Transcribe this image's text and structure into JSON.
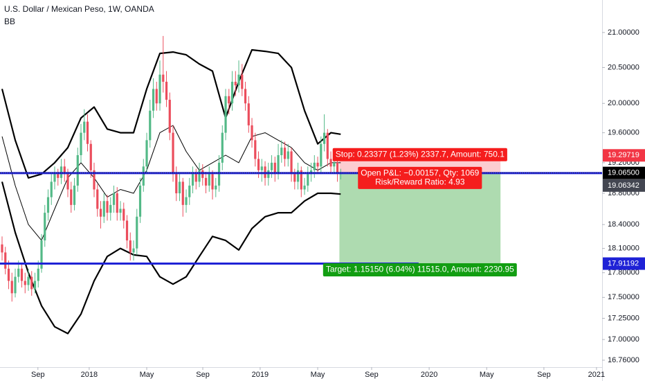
{
  "chart_data": {
    "type": "candlestick",
    "title": "U.S. Dollar / Mexican Peso, 1W, OANDA",
    "log_scale": true,
    "up_color": "#53b987",
    "down_color": "#eb4d5c",
    "x": [
      0,
      1,
      2,
      3,
      4,
      5,
      6,
      7,
      8,
      9,
      10,
      11,
      12,
      13,
      14,
      15,
      16,
      17,
      18,
      19,
      20,
      21,
      22,
      23,
      24,
      25,
      26,
      27,
      28,
      29,
      30,
      31,
      32,
      33,
      34,
      35,
      36,
      37,
      38,
      39,
      40,
      41,
      42,
      43,
      44,
      45,
      46,
      47,
      48,
      49,
      50,
      51,
      52,
      53,
      54,
      55,
      56,
      57,
      58,
      59,
      60,
      61,
      62,
      63,
      64,
      65,
      66,
      67,
      68,
      69,
      70,
      71,
      72,
      73,
      74,
      75,
      76,
      77,
      78,
      79,
      80,
      81,
      82,
      83,
      84,
      85,
      86,
      87,
      88,
      89,
      90,
      91,
      92,
      93,
      94,
      95,
      96,
      97,
      98,
      99,
      100,
      101,
      102,
      103
    ],
    "open": [
      18.15,
      18.05,
      17.85,
      17.7,
      17.55,
      17.75,
      17.85,
      17.7,
      17.65,
      17.75,
      17.6,
      17.7,
      17.85,
      18.2,
      18.55,
      18.75,
      18.95,
      19.05,
      19.0,
      19.15,
      19.05,
      18.85,
      18.65,
      18.9,
      19.3,
      19.6,
      19.75,
      19.45,
      19.1,
      18.85,
      18.6,
      18.5,
      18.7,
      18.55,
      18.65,
      18.8,
      18.55,
      18.6,
      18.45,
      18.2,
      18.05,
      18.1,
      18.5,
      18.9,
      19.15,
      19.5,
      19.9,
      20.2,
      20.0,
      20.4,
      20.3,
      20.05,
      19.6,
      19.05,
      18.8,
      18.95,
      18.65,
      18.75,
      18.9,
      19.05,
      18.95,
      19.1,
      19.0,
      18.9,
      19.05,
      18.85,
      18.9,
      19.2,
      19.6,
      20.1,
      20.0,
      20.3,
      20.25,
      20.4,
      20.2,
      20.0,
      19.7,
      19.5,
      19.25,
      19.1,
      19.15,
      19.0,
      19.1,
      19.2,
      19.05,
      19.3,
      19.4,
      19.25,
      19.35,
      19.05,
      18.95,
      19.1,
      18.85,
      18.9,
      19.05,
      19.1,
      19.2,
      19.15,
      19.45,
      19.6,
      19.25,
      19.15,
      19.2,
      19.05
    ],
    "high": [
      18.25,
      18.12,
      17.95,
      17.8,
      17.85,
      17.95,
      17.92,
      17.8,
      17.85,
      17.82,
      17.8,
      17.95,
      18.28,
      18.65,
      18.85,
      19.05,
      19.15,
      19.12,
      19.25,
      19.25,
      19.12,
      18.95,
      19.0,
      19.4,
      19.72,
      19.92,
      19.85,
      19.5,
      19.2,
      18.92,
      18.7,
      18.8,
      18.78,
      18.75,
      18.9,
      18.88,
      18.7,
      18.68,
      18.52,
      18.3,
      18.2,
      18.6,
      19.0,
      19.25,
      19.6,
      20.05,
      20.35,
      20.3,
      20.6,
      20.95,
      20.45,
      20.15,
      19.7,
      19.15,
      19.05,
      19.0,
      18.85,
      19.0,
      19.15,
      19.12,
      19.2,
      19.18,
      19.08,
      19.15,
      19.1,
      19.0,
      19.3,
      19.7,
      20.2,
      20.2,
      20.45,
      20.45,
      20.6,
      20.55,
      20.3,
      20.1,
      19.8,
      19.6,
      19.35,
      19.25,
      19.22,
      19.2,
      19.3,
      19.28,
      19.45,
      19.5,
      19.48,
      19.45,
      19.4,
      19.12,
      19.2,
      19.15,
      19.0,
      19.15,
      19.2,
      19.3,
      19.28,
      19.55,
      19.85,
      19.65,
      19.35,
      19.3,
      19.25,
      19.12
    ],
    "low": [
      17.95,
      17.78,
      17.6,
      17.45,
      17.5,
      17.68,
      17.62,
      17.55,
      17.58,
      17.52,
      17.55,
      17.62,
      17.8,
      18.12,
      18.45,
      18.65,
      18.85,
      18.9,
      18.92,
      18.95,
      18.75,
      18.55,
      18.58,
      18.82,
      19.2,
      19.5,
      19.35,
      19.0,
      18.75,
      18.5,
      18.35,
      18.42,
      18.45,
      18.45,
      18.55,
      18.45,
      18.45,
      18.35,
      18.1,
      17.95,
      17.95,
      18.02,
      18.42,
      18.82,
      19.05,
      19.4,
      19.8,
      19.9,
      19.9,
      20.15,
      19.95,
      19.5,
      18.95,
      18.7,
      18.7,
      18.5,
      18.55,
      18.65,
      18.8,
      18.85,
      18.88,
      18.9,
      18.8,
      18.82,
      18.72,
      18.75,
      18.82,
      19.1,
      19.5,
      19.85,
      19.9,
      20.1,
      20.15,
      20.1,
      19.9,
      19.6,
      19.4,
      19.15,
      19.0,
      18.95,
      18.9,
      18.9,
      19.0,
      18.95,
      18.98,
      19.2,
      19.15,
      19.15,
      18.95,
      18.85,
      18.85,
      18.75,
      18.78,
      18.82,
      18.95,
      19.0,
      19.05,
      19.05,
      19.35,
      19.15,
      19.05,
      19.05,
      18.95,
      18.98
    ],
    "close": [
      18.05,
      17.85,
      17.7,
      17.55,
      17.75,
      17.85,
      17.7,
      17.65,
      17.75,
      17.6,
      17.7,
      17.85,
      18.2,
      18.55,
      18.75,
      18.95,
      19.05,
      19.0,
      19.15,
      19.05,
      18.85,
      18.65,
      18.9,
      19.3,
      19.6,
      19.75,
      19.45,
      19.1,
      18.85,
      18.6,
      18.5,
      18.7,
      18.55,
      18.65,
      18.8,
      18.55,
      18.6,
      18.45,
      18.2,
      18.05,
      18.1,
      18.5,
      18.9,
      19.15,
      19.5,
      19.9,
      20.2,
      20.0,
      20.4,
      20.3,
      20.05,
      19.6,
      19.05,
      18.8,
      18.95,
      18.65,
      18.75,
      18.9,
      19.05,
      18.95,
      19.1,
      19.0,
      18.9,
      19.05,
      18.85,
      18.9,
      19.2,
      19.6,
      20.1,
      20.0,
      20.3,
      20.25,
      20.4,
      20.2,
      20.0,
      19.7,
      19.5,
      19.25,
      19.1,
      19.15,
      19.0,
      19.1,
      19.2,
      19.05,
      19.3,
      19.4,
      19.25,
      19.35,
      19.05,
      18.95,
      19.1,
      18.85,
      18.9,
      19.05,
      19.1,
      19.2,
      19.15,
      19.45,
      19.6,
      19.25,
      19.15,
      19.2,
      19.05,
      19.07
    ],
    "indicator": {
      "label": "BB",
      "x": [
        0,
        4,
        8,
        12,
        16,
        20,
        24,
        28,
        32,
        36,
        40,
        44,
        48,
        52,
        56,
        60,
        64,
        68,
        72,
        76,
        80,
        84,
        88,
        92,
        96,
        100,
        103
      ],
      "upper": [
        20.2,
        19.5,
        19.0,
        19.05,
        19.2,
        19.4,
        19.8,
        19.95,
        19.65,
        19.6,
        19.6,
        20.2,
        20.7,
        20.72,
        20.68,
        20.55,
        20.45,
        19.8,
        20.3,
        20.75,
        20.73,
        20.7,
        20.5,
        19.9,
        19.45,
        19.6,
        19.58
      ],
      "middle": [
        19.55,
        18.9,
        18.4,
        18.2,
        18.6,
        19.0,
        19.2,
        19.0,
        18.75,
        18.85,
        18.8,
        19.1,
        19.6,
        19.7,
        19.35,
        19.1,
        19.2,
        19.3,
        19.2,
        19.55,
        19.6,
        19.5,
        19.4,
        19.2,
        19.1,
        19.2,
        19.2
      ],
      "lower": [
        18.95,
        18.3,
        17.8,
        17.4,
        17.15,
        17.07,
        17.3,
        17.7,
        18.0,
        18.1,
        18.02,
        18.0,
        17.75,
        17.66,
        17.75,
        18.0,
        18.25,
        18.2,
        18.08,
        18.35,
        18.5,
        18.55,
        18.55,
        18.7,
        18.8,
        18.8,
        18.79
      ],
      "color": "#000000"
    },
    "xlim": [
      -0.63,
      182.5
    ],
    "xticks": [
      {
        "value": 10.9,
        "label": "Sep"
      },
      {
        "value": 26.5,
        "label": "2018"
      },
      {
        "value": 44.0,
        "label": "May"
      },
      {
        "value": 61.05,
        "label": "Sep"
      },
      {
        "value": 78.5,
        "label": "2019"
      },
      {
        "value": 96.0,
        "label": "May"
      },
      {
        "value": 112.4,
        "label": "Sep"
      },
      {
        "value": 129.9,
        "label": "2020"
      },
      {
        "value": 147.4,
        "label": "May"
      },
      {
        "value": 164.8,
        "label": "Sep"
      },
      {
        "value": 180.8,
        "label": "2021"
      }
    ],
    "ylim": [
      16.68,
      21.475
    ],
    "yticks": [
      {
        "value": 21,
        "label": "21.00000"
      },
      {
        "value": 20.5,
        "label": "20.50000"
      },
      {
        "value": 20,
        "label": "20.00000"
      },
      {
        "value": 19.6,
        "label": "19.60000"
      },
      {
        "value": 19.2,
        "label": "19.20000"
      },
      {
        "value": 18.8,
        "label": "18.80000"
      },
      {
        "value": 18.4,
        "label": "18.40000"
      },
      {
        "value": 18.1,
        "label": "18.10000"
      },
      {
        "value": 17.8,
        "label": "17.80000"
      },
      {
        "value": 17.5,
        "label": "17.50000"
      },
      {
        "value": 17.25,
        "label": "17.25000"
      },
      {
        "value": 17,
        "label": "17.00000"
      },
      {
        "value": 16.76,
        "label": "16.76000"
      }
    ],
    "last_price": 19.065,
    "horizontal_lines": [
      {
        "value": 19.06342,
        "start": -0.63,
        "end": 182.5,
        "color": "#1f22d6"
      },
      {
        "value": 17.91192,
        "start": -0.63,
        "end": 126.7,
        "color": "#1f22d6"
      }
    ],
    "position": {
      "entry": 19.06342,
      "stop": 19.29719,
      "target": 17.91192,
      "start": 102.6,
      "end": 151.6,
      "stop_label": "Stop: 0.23377 (1.23%) 2337.7, Amount: 750.1",
      "pnl_label": "Open P&L: −0.00157, Qty: 1069",
      "rr_label": "Risk/Reward Ratio: 4.93",
      "target_label": "Target: 1.15150 (6.04%) 11515.0, Amount: 2230.95"
    },
    "price_labels": [
      {
        "value": 19.29719,
        "label": "19.29719",
        "color": "#f23645"
      },
      {
        "value": 19.065,
        "label": "19.06500",
        "color": "#000000"
      },
      {
        "value": 19.06342,
        "label": "19.06342",
        "color": "#434651"
      },
      {
        "value": 17.91192,
        "label": "17.91192",
        "color": "#1f22d6"
      }
    ]
  }
}
